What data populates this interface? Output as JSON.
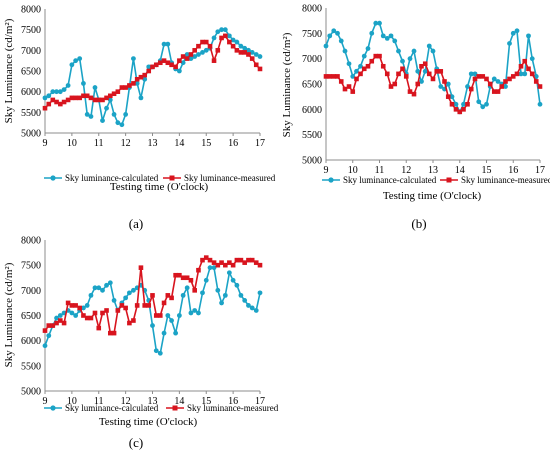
{
  "colors": {
    "calculated": "#1BA3C6",
    "measured": "#D8141E"
  },
  "chart_data": [
    {
      "type": "line",
      "panel_label": "(a)",
      "xlabel": "Testing time (O'clock)",
      "ylabel": "Sky Luminance (cd/m²)",
      "ylim": [
        5000,
        8000
      ],
      "xlim": [
        9,
        17
      ],
      "yticks": [
        "5000",
        "5500",
        "6000",
        "6500",
        "7000",
        "7500",
        "8000"
      ],
      "xticks": [
        "9",
        "10",
        "11",
        "12",
        "13",
        "14",
        "15",
        "16",
        "17"
      ],
      "legend_position": "bottom",
      "grid": false,
      "series": [
        {
          "name": "Sky luminance-calculated",
          "color_key": "calculated",
          "marker": "circle",
          "x": [
            9.0,
            9.14,
            9.29,
            9.43,
            9.57,
            9.71,
            9.86,
            10.0,
            10.14,
            10.29,
            10.43,
            10.57,
            10.71,
            10.86,
            11.0,
            11.14,
            11.29,
            11.43,
            11.57,
            11.71,
            11.86,
            12.0,
            12.14,
            12.29,
            12.43,
            12.57,
            12.71,
            12.86,
            13.0,
            13.14,
            13.29,
            13.43,
            13.57,
            13.71,
            13.86,
            14.0,
            14.14,
            14.29,
            14.43,
            14.57,
            14.71,
            14.86,
            15.0,
            15.14,
            15.29,
            15.43,
            15.57,
            15.71,
            15.86,
            16.0,
            16.14,
            16.29,
            16.43,
            16.57,
            16.71,
            16.86,
            17.0
          ],
          "y": [
            5850,
            5900,
            6000,
            6000,
            6000,
            6050,
            6150,
            6650,
            6750,
            6800,
            6200,
            5450,
            5400,
            6100,
            5800,
            5300,
            5600,
            5800,
            5450,
            5250,
            5200,
            5450,
            6100,
            6800,
            6200,
            5850,
            6300,
            6600,
            6600,
            6650,
            6750,
            7150,
            7150,
            6700,
            6550,
            6500,
            6700,
            6900,
            6800,
            6850,
            6900,
            6950,
            7000,
            7050,
            7300,
            7450,
            7500,
            7500,
            7350,
            7250,
            7200,
            7100,
            7050,
            7000,
            6950,
            6900,
            6850
          ]
        },
        {
          "name": "Sky luminance-measured",
          "color_key": "measured",
          "marker": "square",
          "x": [
            9.0,
            9.14,
            9.29,
            9.43,
            9.57,
            9.71,
            9.86,
            10.0,
            10.14,
            10.29,
            10.43,
            10.57,
            10.71,
            10.86,
            11.0,
            11.14,
            11.29,
            11.43,
            11.57,
            11.71,
            11.86,
            12.0,
            12.14,
            12.29,
            12.43,
            12.57,
            12.71,
            12.86,
            13.0,
            13.14,
            13.29,
            13.43,
            13.57,
            13.71,
            13.86,
            14.0,
            14.14,
            14.29,
            14.43,
            14.57,
            14.71,
            14.86,
            15.0,
            15.14,
            15.29,
            15.43,
            15.57,
            15.71,
            15.86,
            16.0,
            16.14,
            16.29,
            16.43,
            16.57,
            16.71,
            16.86,
            17.0
          ],
          "y": [
            5600,
            5700,
            5800,
            5750,
            5700,
            5750,
            5800,
            5850,
            5850,
            5850,
            5900,
            5900,
            5850,
            5800,
            5800,
            5800,
            5850,
            5900,
            5950,
            6000,
            6100,
            6100,
            6150,
            6200,
            6300,
            6350,
            6400,
            6500,
            6600,
            6650,
            6700,
            6750,
            6700,
            6650,
            6600,
            6750,
            6850,
            6800,
            6900,
            7000,
            7100,
            7200,
            7200,
            7100,
            6750,
            7000,
            7300,
            7350,
            7200,
            7100,
            7000,
            6950,
            6950,
            6900,
            6800,
            6650,
            6550
          ]
        }
      ]
    },
    {
      "type": "line",
      "panel_label": "(b)",
      "xlabel": "Testing time (O'clock)",
      "ylabel": "Sky Luminance (cd/m²)",
      "ylim": [
        5000,
        8000
      ],
      "xlim": [
        9,
        17
      ],
      "yticks": [
        "5000",
        "5500",
        "6000",
        "6500",
        "7000",
        "7500",
        "8000"
      ],
      "xticks": [
        "9",
        "10",
        "11",
        "12",
        "13",
        "14",
        "15",
        "16",
        "17"
      ],
      "legend_position": "bottom",
      "grid": false,
      "series": [
        {
          "name": "Sky luminance-calculated",
          "color_key": "calculated",
          "marker": "circle",
          "x": [
            9.0,
            9.14,
            9.29,
            9.43,
            9.57,
            9.71,
            9.86,
            10.0,
            10.14,
            10.29,
            10.43,
            10.57,
            10.71,
            10.86,
            11.0,
            11.14,
            11.29,
            11.43,
            11.57,
            11.71,
            11.86,
            12.0,
            12.14,
            12.29,
            12.43,
            12.57,
            12.71,
            12.86,
            13.0,
            13.14,
            13.29,
            13.43,
            13.57,
            13.71,
            13.86,
            14.0,
            14.14,
            14.29,
            14.43,
            14.57,
            14.71,
            14.86,
            15.0,
            15.14,
            15.29,
            15.43,
            15.57,
            15.71,
            15.86,
            16.0,
            16.14,
            16.29,
            16.43,
            16.57,
            16.71,
            16.86,
            17.0
          ],
          "y": [
            7250,
            7450,
            7550,
            7500,
            7350,
            7150,
            6900,
            6650,
            6750,
            6850,
            7050,
            7200,
            7500,
            7700,
            7700,
            7450,
            7400,
            7450,
            7350,
            7150,
            6950,
            6700,
            7000,
            7150,
            6750,
            6550,
            6750,
            7250,
            7150,
            6800,
            6450,
            6400,
            6500,
            6250,
            6100,
            5950,
            6100,
            6450,
            6700,
            6700,
            6150,
            6050,
            6100,
            6450,
            6600,
            6550,
            6500,
            6450,
            7300,
            7500,
            7550,
            6700,
            6700,
            7450,
            7000,
            6650,
            6100
          ]
        },
        {
          "name": "Sky luminance-measured",
          "color_key": "measured",
          "marker": "square",
          "x": [
            9.0,
            9.14,
            9.29,
            9.43,
            9.57,
            9.71,
            9.86,
            10.0,
            10.14,
            10.29,
            10.43,
            10.57,
            10.71,
            10.86,
            11.0,
            11.14,
            11.29,
            11.43,
            11.57,
            11.71,
            11.86,
            12.0,
            12.14,
            12.29,
            12.43,
            12.57,
            12.71,
            12.86,
            13.0,
            13.14,
            13.29,
            13.43,
            13.57,
            13.71,
            13.86,
            14.0,
            14.14,
            14.29,
            14.43,
            14.57,
            14.71,
            14.86,
            15.0,
            15.14,
            15.29,
            15.43,
            15.57,
            15.71,
            15.86,
            16.0,
            16.14,
            16.29,
            16.43,
            16.57,
            16.71,
            16.86,
            17.0
          ],
          "y": [
            6650,
            6650,
            6650,
            6650,
            6550,
            6400,
            6450,
            6350,
            6600,
            6700,
            6800,
            6850,
            6950,
            7050,
            7050,
            6850,
            6700,
            6450,
            6500,
            6700,
            6800,
            6650,
            6350,
            6300,
            6500,
            6850,
            6900,
            6700,
            6600,
            6750,
            6750,
            6550,
            6250,
            6100,
            6000,
            5950,
            6000,
            6100,
            6400,
            6600,
            6650,
            6650,
            6600,
            6500,
            6350,
            6350,
            6450,
            6550,
            6600,
            6650,
            6700,
            6850,
            6950,
            6800,
            6700,
            6550,
            6450
          ]
        }
      ]
    },
    {
      "type": "line",
      "panel_label": "(c)",
      "xlabel": "Testing time (O'clock)",
      "ylabel": "Sky Luminance (cd/m²)",
      "ylim": [
        5000,
        8000
      ],
      "xlim": [
        9,
        17
      ],
      "yticks": [
        "5000",
        "5500",
        "6000",
        "6500",
        "7000",
        "7500",
        "8000"
      ],
      "xticks": [
        "9",
        "10",
        "11",
        "12",
        "13",
        "14",
        "15",
        "16",
        "17"
      ],
      "legend_position": "bottom",
      "grid": false,
      "series": [
        {
          "name": "Sky luminance-calculated",
          "color_key": "calculated",
          "marker": "circle",
          "x": [
            9.0,
            9.14,
            9.29,
            9.43,
            9.57,
            9.71,
            9.86,
            10.0,
            10.14,
            10.29,
            10.43,
            10.57,
            10.71,
            10.86,
            11.0,
            11.14,
            11.29,
            11.43,
            11.57,
            11.71,
            11.86,
            12.0,
            12.14,
            12.29,
            12.43,
            12.57,
            12.71,
            12.86,
            13.0,
            13.14,
            13.29,
            13.43,
            13.57,
            13.71,
            13.86,
            14.0,
            14.14,
            14.29,
            14.43,
            14.57,
            14.71,
            14.86,
            15.0,
            15.14,
            15.29,
            15.43,
            15.57,
            15.71,
            15.86,
            16.0,
            16.14,
            16.29,
            16.43,
            16.57,
            16.71,
            16.86,
            17.0
          ],
          "y": [
            5900,
            6100,
            6300,
            6450,
            6500,
            6550,
            6600,
            6550,
            6500,
            6600,
            6650,
            6700,
            6900,
            7050,
            7050,
            7000,
            7100,
            7150,
            6800,
            6600,
            6750,
            6850,
            6950,
            7000,
            7050,
            7100,
            7000,
            6800,
            6300,
            5800,
            5750,
            6150,
            6500,
            6400,
            6150,
            6500,
            6900,
            7050,
            6550,
            6600,
            6550,
            6950,
            7200,
            7450,
            7450,
            7000,
            6750,
            6900,
            7350,
            7200,
            7100,
            6900,
            6800,
            6700,
            6650,
            6600,
            6950
          ]
        },
        {
          "name": "Sky luminance-measured",
          "color_key": "measured",
          "marker": "square",
          "x": [
            9.0,
            9.14,
            9.29,
            9.43,
            9.57,
            9.71,
            9.86,
            10.0,
            10.14,
            10.29,
            10.43,
            10.57,
            10.71,
            10.86,
            11.0,
            11.14,
            11.29,
            11.43,
            11.57,
            11.71,
            11.86,
            12.0,
            12.14,
            12.29,
            12.43,
            12.57,
            12.71,
            12.86,
            13.0,
            13.14,
            13.29,
            13.43,
            13.57,
            13.71,
            13.86,
            14.0,
            14.14,
            14.29,
            14.43,
            14.57,
            14.71,
            14.86,
            15.0,
            15.14,
            15.29,
            15.43,
            15.57,
            15.71,
            15.86,
            16.0,
            16.14,
            16.29,
            16.43,
            16.57,
            16.71,
            16.86,
            17.0
          ],
          "y": [
            6200,
            6300,
            6300,
            6350,
            6400,
            6350,
            6750,
            6700,
            6700,
            6650,
            6500,
            6450,
            6450,
            6550,
            6250,
            6550,
            6600,
            6150,
            6150,
            6600,
            6700,
            6650,
            6350,
            6400,
            6700,
            7450,
            6700,
            6700,
            6900,
            6500,
            6500,
            6750,
            6900,
            6850,
            7300,
            7300,
            7250,
            7250,
            7200,
            7000,
            7400,
            7600,
            7650,
            7600,
            7550,
            7500,
            7550,
            7500,
            7550,
            7500,
            7600,
            7600,
            7550,
            7600,
            7600,
            7550,
            7500
          ]
        }
      ]
    }
  ]
}
